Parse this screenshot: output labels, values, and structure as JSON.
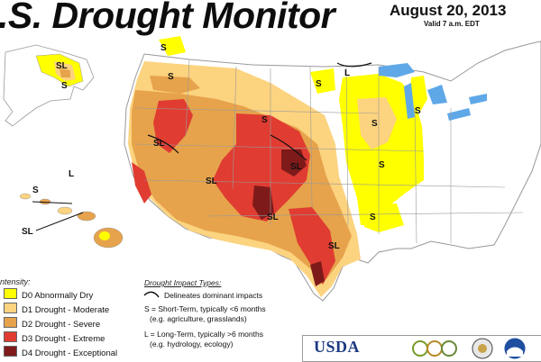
{
  "header": {
    "title": ".S. Drought Monitor",
    "date": "August 20, 2013",
    "valid": "Valid 7 a.m. EDT"
  },
  "legend": {
    "title": "ntensity:",
    "items": [
      {
        "label": "D0 Abnormally Dry",
        "color": "#ffff00"
      },
      {
        "label": "D1 Drought - Moderate",
        "color": "#fcd37f"
      },
      {
        "label": "D2 Drought - Severe",
        "color": "#e6a34b"
      },
      {
        "label": "D3 Drought - Extreme",
        "color": "#e03c31"
      },
      {
        "label": "D4 Drought - Exceptional",
        "color": "#7f1a1a"
      }
    ]
  },
  "impact": {
    "title": "Drought Impact Types:",
    "delineates": "Delineates dominant impacts",
    "short_term_1": "S = Short-Term, typically <6 months",
    "short_term_2": "(e.g. agriculture, grasslands)",
    "long_term_1": "L = Long-Term, typically >6 months",
    "long_term_2": "(e.g. hydrology, ecology)"
  },
  "map_labels": {
    "s": "S",
    "sl": "SL",
    "l": "L"
  },
  "logos": {
    "usda": "USDA"
  },
  "colors": {
    "water": "#5fa8e8",
    "state_border": "#9a9a9a",
    "background": "#ffffff"
  }
}
